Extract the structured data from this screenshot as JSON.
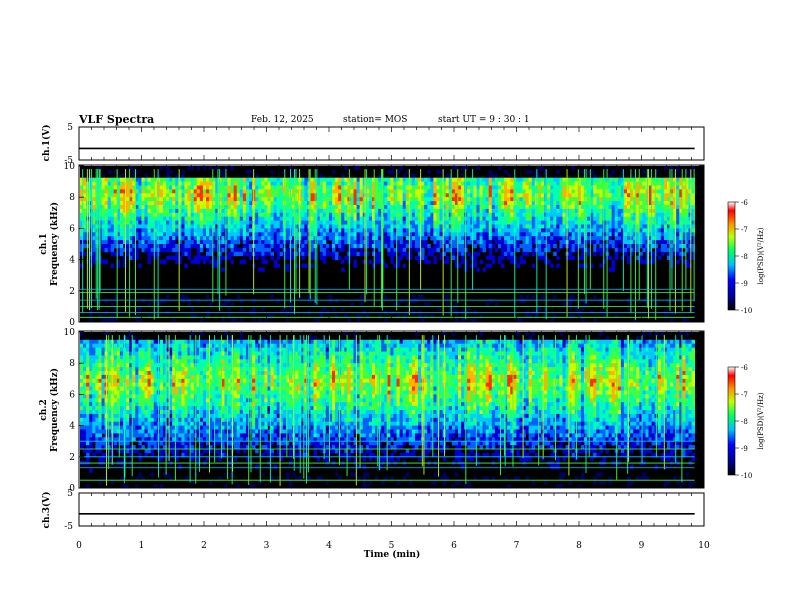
{
  "header": {
    "title": "VLF Spectra",
    "date": "Feb. 12, 2025",
    "station": "station= MOS",
    "start": "start  UT  =   9  : 30 : 1"
  },
  "chart_data": [
    {
      "type": "line",
      "panel": "ch1-voltage",
      "ylabel": "ch.1(V)",
      "ylim": [
        -5,
        5
      ],
      "yticks": [
        "5",
        "-5"
      ],
      "x": [
        0,
        9.85
      ],
      "series": [
        {
          "values": [
            -1.5,
            -1.5
          ]
        }
      ]
    },
    {
      "type": "heatmap",
      "panel": "ch1-spectrogram",
      "ylabel": "ch.1\nFrequency (kHz)",
      "ylim": [
        0,
        10
      ],
      "xlim": [
        0,
        10
      ],
      "yticks": [
        "0",
        "2",
        "4",
        "6",
        "8",
        "10"
      ],
      "colorbar": {
        "label": "log(PSD)(V²/Hz)",
        "range": [
          -10,
          -6
        ],
        "ticks": [
          "-6",
          "-7",
          "-8",
          "-9",
          "-10"
        ],
        "colors": [
          "#000080",
          "#0000ff",
          "#00c0ff",
          "#00ff80",
          "#c0ff00",
          "#ffa000",
          "#ff0000",
          "#ffffff"
        ]
      },
      "band_khz": [
        1.8,
        9.3
      ],
      "horizontal_lines_khz": [
        0.3,
        0.6,
        1.0,
        1.4,
        1.9,
        2.1
      ],
      "peak_khz": 8.2
    },
    {
      "type": "heatmap",
      "panel": "ch2-spectrogram",
      "ylabel": "ch.2\nFrequency (kHz)",
      "ylim": [
        0,
        10
      ],
      "xlim": [
        0,
        10
      ],
      "yticks": [
        "0",
        "2",
        "4",
        "6",
        "8",
        "10"
      ],
      "colorbar": {
        "label": "log(PSD)(V²/Hz)",
        "range": [
          -10,
          -6
        ],
        "ticks": [
          "-6",
          "-7",
          "-8",
          "-9",
          "-10"
        ]
      },
      "band_khz": [
        1.0,
        9.5
      ],
      "horizontal_lines_khz": [
        0.5,
        1.3,
        1.6,
        2.0,
        2.5,
        3.0
      ],
      "peak_khz": 6.8
    },
    {
      "type": "line",
      "panel": "ch3-voltage",
      "ylabel": "ch.3(V)",
      "ylim": [
        -5,
        5
      ],
      "yticks": [
        "5",
        "-5"
      ],
      "x": [
        0,
        9.85
      ],
      "series": [
        {
          "values": [
            -1.3,
            -1.3
          ]
        }
      ]
    }
  ],
  "xaxis": {
    "label": "Time  (min)",
    "ticks": [
      "0",
      "1",
      "2",
      "3",
      "4",
      "5",
      "6",
      "7",
      "8",
      "9",
      "10"
    ],
    "xlim": [
      0,
      10
    ]
  }
}
